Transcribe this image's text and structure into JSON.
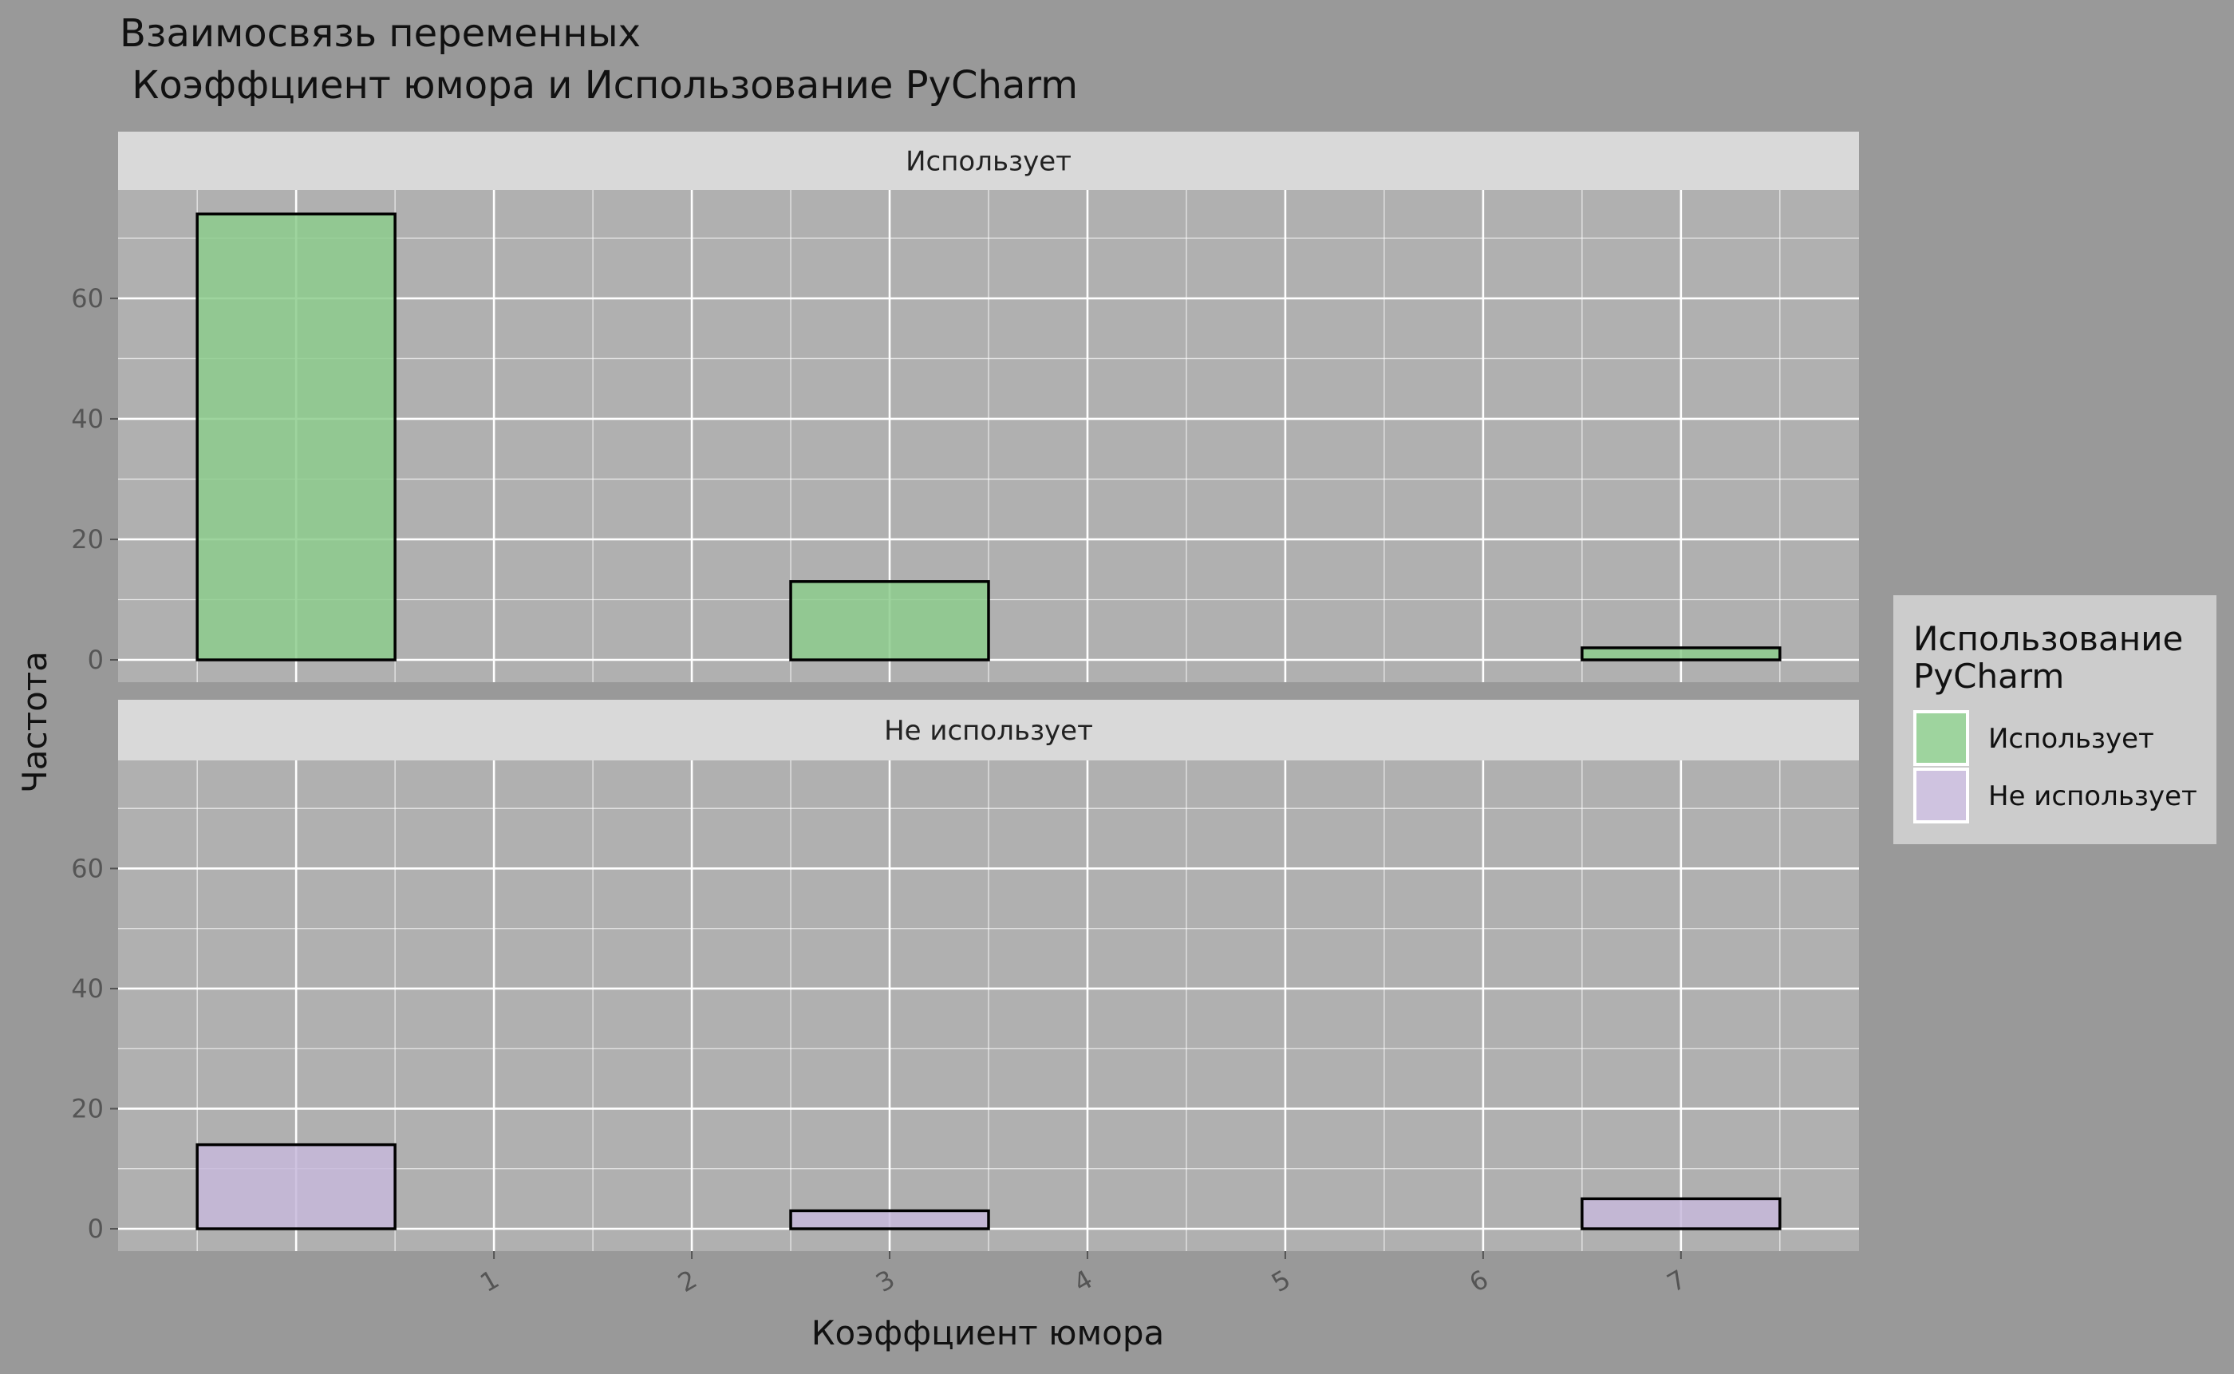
{
  "chart_data": {
    "type": "bar",
    "title_line1": "Взаимосвязь переменных",
    "title_line2": " Коэффциент юмора и Использование PyCharm",
    "xlabel": "Коэффциент юмора",
    "ylabel": "Частота",
    "x_ticks": [
      "1",
      "2",
      "3",
      "4",
      "5",
      "6",
      "7"
    ],
    "y_ticks": [
      0,
      20,
      40,
      60
    ],
    "ylim": [
      0,
      78
    ],
    "xlim": [
      -0.9,
      7.9
    ],
    "bin_width": 1,
    "legend": {
      "title_line1": "Использование",
      "title_line2": "PyCharm",
      "position": "right"
    },
    "panels": [
      {
        "name": "Использует",
        "color": "#8dcc8d",
        "bins": [
          {
            "center": 0,
            "value": 74
          },
          {
            "center": 1,
            "value": 0
          },
          {
            "center": 2,
            "value": 0
          },
          {
            "center": 3,
            "value": 13
          },
          {
            "center": 4,
            "value": 0
          },
          {
            "center": 5,
            "value": 0
          },
          {
            "center": 6,
            "value": 0
          },
          {
            "center": 7,
            "value": 2
          }
        ]
      },
      {
        "name": "Не использует",
        "color": "#c7b8db",
        "bins": [
          {
            "center": 0,
            "value": 14
          },
          {
            "center": 1,
            "value": 0
          },
          {
            "center": 2,
            "value": 0
          },
          {
            "center": 3,
            "value": 3
          },
          {
            "center": 4,
            "value": 0
          },
          {
            "center": 5,
            "value": 0
          },
          {
            "center": 6,
            "value": 0
          },
          {
            "center": 7,
            "value": 5
          }
        ]
      }
    ],
    "colors": {
      "page_bg": "#999999",
      "panel_bg": "#b0b0b0",
      "strip_bg": "#d9d9d9",
      "grid": "#ffffff",
      "legend_bg": "#cccccc"
    }
  }
}
